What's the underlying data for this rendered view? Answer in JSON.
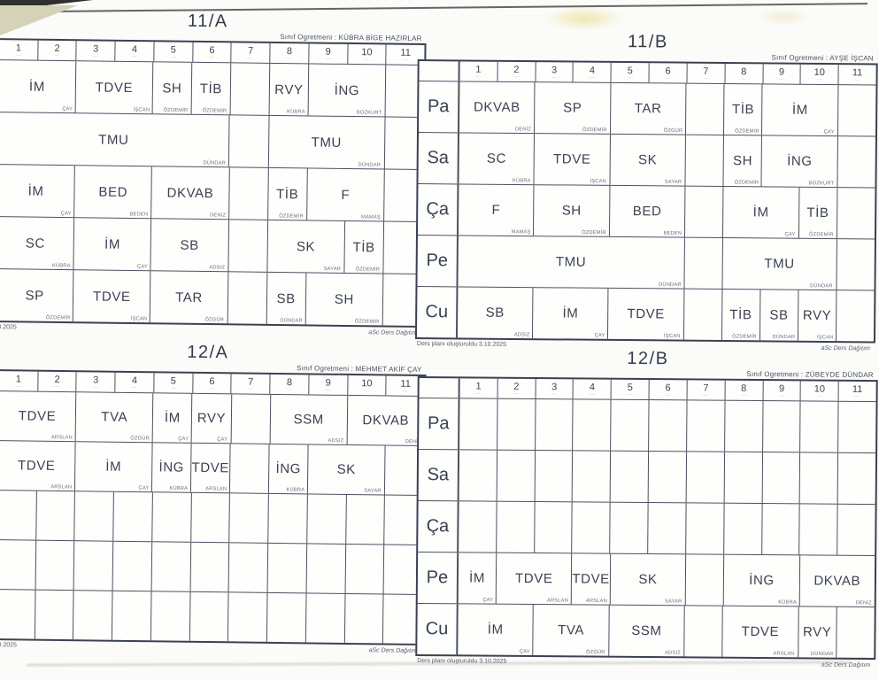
{
  "page": {
    "teacher_prefix": "Sınıf Ogretmeni :",
    "footer_created": "Ders planı oluşturuldu 3.10.2025",
    "footer_brand": "aSc Ders Dağıtım",
    "days": [
      "Pa",
      "Sa",
      "Ça",
      "Pe",
      "Cu"
    ],
    "periods": [
      "1",
      "2",
      "3",
      "4",
      "5",
      "6",
      "7",
      "8",
      "9",
      "10",
      "11"
    ],
    "period_time_hint": "··–··",
    "ink_color": "#3a4151",
    "line_color": "#4a5160",
    "paper_color": "#fbfbf9"
  },
  "tables": [
    {
      "id": "11A",
      "title": "11/A",
      "teacher": "KÜBRA BİGE HAZIRLAR",
      "rows": [
        [
          {
            "sp": 2,
            "su": "İM",
            "te": "ÇAY"
          },
          {
            "sp": 2,
            "su": "TDVE",
            "te": "İŞCAN"
          },
          {
            "sp": 1,
            "su": "SH",
            "te": "ÖZDEMİR"
          },
          {
            "sp": 1,
            "su": "TİB",
            "te": "ÖZDEMİR"
          },
          {
            "sp": 1
          },
          {
            "sp": 1,
            "su": "RVY",
            "te": "KÜBRA"
          },
          {
            "sp": 2,
            "su": "İNG",
            "te": "BOZKURT"
          },
          {
            "sp": 1
          }
        ],
        [
          {
            "sp": 6,
            "su": "TMU",
            "te": "DÜNDAR"
          },
          {
            "sp": 1
          },
          {
            "sp": 3,
            "su": "TMU",
            "te": "DÜNDAR"
          },
          {
            "sp": 1
          }
        ],
        [
          {
            "sp": 2,
            "su": "İM",
            "te": "ÇAY"
          },
          {
            "sp": 2,
            "su": "BED",
            "te": "BEDEN"
          },
          {
            "sp": 2,
            "su": "DKVAB",
            "te": "DENİZ"
          },
          {
            "sp": 1
          },
          {
            "sp": 1,
            "su": "TİB",
            "te": "ÖZDEMİR"
          },
          {
            "sp": 2,
            "su": "F",
            "te": "MAMAŞ"
          },
          {
            "sp": 1
          }
        ],
        [
          {
            "sp": 2,
            "su": "SC",
            "te": "KÜBRA"
          },
          {
            "sp": 2,
            "su": "İM",
            "te": "ÇAY"
          },
          {
            "sp": 2,
            "su": "SB",
            "te": "ADSIZ"
          },
          {
            "sp": 1
          },
          {
            "sp": 2,
            "su": "SK",
            "te": "SAYAR"
          },
          {
            "sp": 1,
            "su": "TİB",
            "te": "ÖZDEMİR"
          },
          {
            "sp": 1
          }
        ],
        [
          {
            "sp": 2,
            "su": "SP",
            "te": "ÖZDEMİR"
          },
          {
            "sp": 2,
            "su": "TDVE",
            "te": "İŞCAN"
          },
          {
            "sp": 2,
            "su": "TAR",
            "te": "ÖZGÜR"
          },
          {
            "sp": 1
          },
          {
            "sp": 1,
            "su": "SB",
            "te": "DÜNDAR"
          },
          {
            "sp": 2,
            "su": "SH",
            "te": "ÖZDEMİR"
          },
          {
            "sp": 1
          }
        ]
      ]
    },
    {
      "id": "11B",
      "title": "11/B",
      "teacher": "AYŞE İŞCAN",
      "rows": [
        [
          {
            "sp": 2,
            "su": "DKVAB",
            "te": "DENİZ"
          },
          {
            "sp": 2,
            "su": "SP",
            "te": "ÖZDEMİR"
          },
          {
            "sp": 2,
            "su": "TAR",
            "te": "ÖZGÜR"
          },
          {
            "sp": 1
          },
          {
            "sp": 1,
            "su": "TİB",
            "te": "ÖZDEMİR"
          },
          {
            "sp": 2,
            "su": "İM",
            "te": "ÇAY"
          },
          {
            "sp": 1
          }
        ],
        [
          {
            "sp": 2,
            "su": "SC",
            "te": "KÜBRA"
          },
          {
            "sp": 2,
            "su": "TDVE",
            "te": "İŞCAN"
          },
          {
            "sp": 2,
            "su": "SK",
            "te": "SAYAR"
          },
          {
            "sp": 1
          },
          {
            "sp": 1,
            "su": "SH",
            "te": "ÖZDEMİR"
          },
          {
            "sp": 2,
            "su": "İNG",
            "te": "BOZKURT"
          },
          {
            "sp": 1
          }
        ],
        [
          {
            "sp": 2,
            "su": "F",
            "te": "MAMAŞ"
          },
          {
            "sp": 2,
            "su": "SH",
            "te": "ÖZDEMİR"
          },
          {
            "sp": 2,
            "su": "BED",
            "te": "BEDEN"
          },
          {
            "sp": 1
          },
          {
            "sp": 2,
            "su": "İM",
            "te": "ÇAY"
          },
          {
            "sp": 1,
            "su": "TİB",
            "te": "ÖZDEMİR"
          },
          {
            "sp": 1
          }
        ],
        [
          {
            "sp": 6,
            "su": "TMU",
            "te": "DÜNDAR"
          },
          {
            "sp": 1
          },
          {
            "sp": 3,
            "su": "TMU",
            "te": "DÜNDAR"
          },
          {
            "sp": 1
          }
        ],
        [
          {
            "sp": 2,
            "su": "SB",
            "te": "ADSIZ"
          },
          {
            "sp": 2,
            "su": "İM",
            "te": "ÇAY"
          },
          {
            "sp": 2,
            "su": "TDVE",
            "te": "İŞCAN"
          },
          {
            "sp": 1
          },
          {
            "sp": 1,
            "su": "TİB",
            "te": "ÖZDEMİR"
          },
          {
            "sp": 1,
            "su": "SB",
            "te": "DÜNDAR"
          },
          {
            "sp": 1,
            "su": "RVY",
            "te": "İŞCAN"
          },
          {
            "sp": 1
          }
        ]
      ]
    },
    {
      "id": "12A",
      "title": "12/A",
      "teacher": "MEHMET AKİF ÇAY",
      "rows": [
        [
          {
            "sp": 2,
            "su": "TDVE",
            "te": "ARSLAN"
          },
          {
            "sp": 2,
            "su": "TVA",
            "te": "ÖZGÜR"
          },
          {
            "sp": 1,
            "su": "İM",
            "te": "ÇAY"
          },
          {
            "sp": 1,
            "su": "RVY",
            "te": "ÇAY"
          },
          {
            "sp": 1
          },
          {
            "sp": 2,
            "su": "SSM",
            "te": "ADSIZ"
          },
          {
            "sp": 2,
            "su": "DKVAB",
            "te": "DENİZ"
          }
        ],
        [
          {
            "sp": 2,
            "su": "TDVE",
            "te": "ARSLAN"
          },
          {
            "sp": 2,
            "su": "İM",
            "te": "ÇAY"
          },
          {
            "sp": 1,
            "su": "İNG",
            "te": "KÜBRA"
          },
          {
            "sp": 1,
            "su": "TDVE",
            "te": "ARSLAN"
          },
          {
            "sp": 1
          },
          {
            "sp": 1,
            "su": "İNG",
            "te": "KÜBRA"
          },
          {
            "sp": 2,
            "su": "SK",
            "te": "SAYAR"
          },
          {
            "sp": 1
          }
        ],
        [
          {
            "sp": 1
          },
          {
            "sp": 1
          },
          {
            "sp": 1
          },
          {
            "sp": 1
          },
          {
            "sp": 1
          },
          {
            "sp": 1
          },
          {
            "sp": 1
          },
          {
            "sp": 1
          },
          {
            "sp": 1
          },
          {
            "sp": 1
          },
          {
            "sp": 1
          }
        ],
        [
          {
            "sp": 1
          },
          {
            "sp": 1
          },
          {
            "sp": 1
          },
          {
            "sp": 1
          },
          {
            "sp": 1
          },
          {
            "sp": 1
          },
          {
            "sp": 1
          },
          {
            "sp": 1
          },
          {
            "sp": 1
          },
          {
            "sp": 1
          },
          {
            "sp": 1
          }
        ],
        [
          {
            "sp": 1
          },
          {
            "sp": 1
          },
          {
            "sp": 1
          },
          {
            "sp": 1
          },
          {
            "sp": 1
          },
          {
            "sp": 1
          },
          {
            "sp": 1
          },
          {
            "sp": 1
          },
          {
            "sp": 1
          },
          {
            "sp": 1
          },
          {
            "sp": 1
          }
        ]
      ]
    },
    {
      "id": "12B",
      "title": "12/B",
      "teacher": "ZÜBEYDE DÜNDAR",
      "rows": [
        [
          {
            "sp": 1
          },
          {
            "sp": 1
          },
          {
            "sp": 1
          },
          {
            "sp": 1
          },
          {
            "sp": 1
          },
          {
            "sp": 1
          },
          {
            "sp": 1
          },
          {
            "sp": 1
          },
          {
            "sp": 1
          },
          {
            "sp": 1
          },
          {
            "sp": 1
          }
        ],
        [
          {
            "sp": 1
          },
          {
            "sp": 1
          },
          {
            "sp": 1
          },
          {
            "sp": 1
          },
          {
            "sp": 1
          },
          {
            "sp": 1
          },
          {
            "sp": 1
          },
          {
            "sp": 1
          },
          {
            "sp": 1
          },
          {
            "sp": 1
          },
          {
            "sp": 1
          }
        ],
        [
          {
            "sp": 1
          },
          {
            "sp": 1
          },
          {
            "sp": 1
          },
          {
            "sp": 1
          },
          {
            "sp": 1
          },
          {
            "sp": 1
          },
          {
            "sp": 1
          },
          {
            "sp": 1
          },
          {
            "sp": 1
          },
          {
            "sp": 1
          },
          {
            "sp": 1
          }
        ],
        [
          {
            "sp": 1,
            "su": "İM",
            "te": "ÇAY"
          },
          {
            "sp": 2,
            "su": "TDVE",
            "te": "ARSLAN"
          },
          {
            "sp": 1,
            "su": "TDVE",
            "te": "ARSLAN"
          },
          {
            "sp": 2,
            "su": "SK",
            "te": "SAYAR"
          },
          {
            "sp": 1
          },
          {
            "sp": 2,
            "su": "İNG",
            "te": "KÜBRA"
          },
          {
            "sp": 2,
            "su": "DKVAB",
            "te": "DENİZ"
          }
        ],
        [
          {
            "sp": 2,
            "su": "İM",
            "te": "ÇAY"
          },
          {
            "sp": 2,
            "su": "TVA",
            "te": "ÖZGÜR"
          },
          {
            "sp": 2,
            "su": "SSM",
            "te": "ADSIZ"
          },
          {
            "sp": 1
          },
          {
            "sp": 2,
            "su": "TDVE",
            "te": "ARSLAN"
          },
          {
            "sp": 1,
            "su": "RVY",
            "te": "DÜNDAR"
          },
          {
            "sp": 1
          }
        ]
      ]
    }
  ]
}
